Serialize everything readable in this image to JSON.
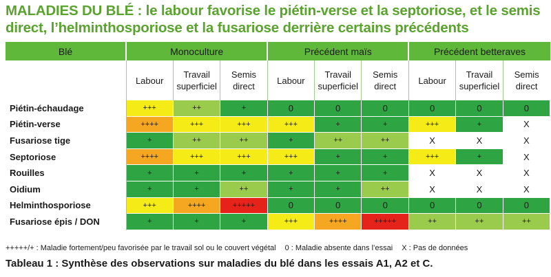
{
  "title": "MALADIES DU BLÉ : le labour favorise le piétin-verse et la septoriose, et le semis direct, l’helminthosporiose et la fusariose derrière certains précédents",
  "header": {
    "ble": "Blé",
    "groups": [
      "Monoculture",
      "Précédent maïs",
      "Précédent betteraves"
    ]
  },
  "subheaders": [
    "Labour",
    "Travail superficiel",
    "Semis direct",
    "Labour",
    "Travail superficiel",
    "Semis direct",
    "Labour",
    "Travail superficiel",
    "Semis direct"
  ],
  "rows": [
    {
      "label": "Piétin-échaudage",
      "cells": [
        "+++",
        "++",
        "+",
        "0",
        "0",
        "0",
        "0",
        "0",
        "0"
      ]
    },
    {
      "label": "Piétin-verse",
      "cells": [
        "++++",
        "+++",
        "+++",
        "+++",
        "+",
        "+",
        "+++",
        "+",
        "X"
      ]
    },
    {
      "label": "Fusariose tige",
      "cells": [
        "+",
        "++",
        "++",
        "+",
        "++",
        "++",
        "X",
        "X",
        "X"
      ]
    },
    {
      "label": "Septoriose",
      "cells": [
        "++++",
        "+++",
        "+++",
        "+++",
        "+",
        "+",
        "+++",
        "+",
        "X"
      ]
    },
    {
      "label": "Rouilles",
      "cells": [
        "+",
        "+",
        "+",
        "+",
        "+",
        "+",
        "X",
        "X",
        "X"
      ]
    },
    {
      "label": "Oidium",
      "cells": [
        "+",
        "+",
        "++",
        "+",
        "+",
        "++",
        "X",
        "X",
        "X"
      ]
    },
    {
      "label": "Helminthosporiose",
      "cells": [
        "+++",
        "++++",
        "+++++",
        "0",
        "0",
        "0",
        "0",
        "0",
        "0"
      ]
    },
    {
      "label": "Fusariose épis / DON",
      "cells": [
        "+",
        "+",
        "+",
        "+++",
        "++++",
        "+++++",
        "++",
        "++",
        "++"
      ]
    }
  ],
  "legend": {
    "plus": "+++++/+ : Maladie fortement/peu favorisée par le travail sol ou le couvert végétal",
    "zero": "0 : Maladie absente dans l’essai",
    "x": "X : Pas de données"
  },
  "caption": "Tableau 1  : Synthèse des observations sur maladies du blé dans les essais A1, A2 et C.",
  "colors": {
    "title": "#5aa32e",
    "header": "#5fb83a",
    "level_0_1": "#2ea442",
    "level_2": "#9bcb4d",
    "level_3": "#f4eb17",
    "level_4": "#f6a722",
    "level_5": "#e5231b",
    "no_data": "#ffffff"
  }
}
